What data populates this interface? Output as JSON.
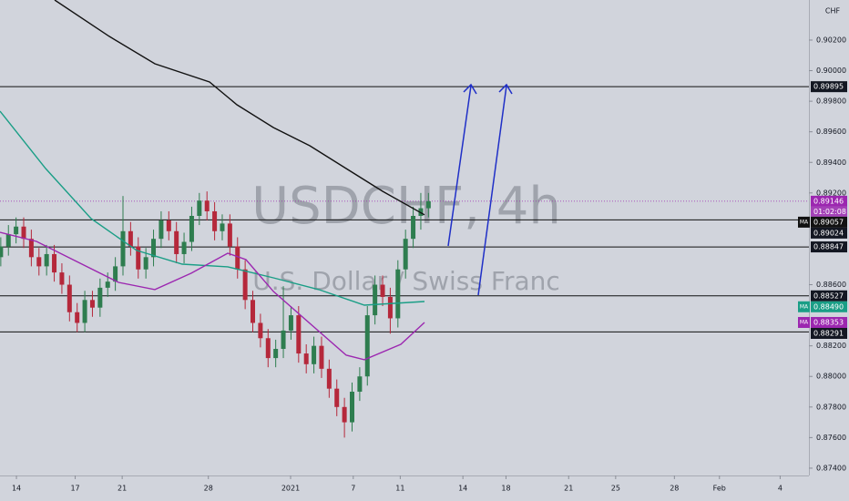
{
  "chart_data": {
    "type": "candlestick",
    "title": "USDCHF, 4h",
    "subtitle": "U.S. Dollar / Swiss Franc",
    "currency": "CHF",
    "up_color": "#2e7d4f",
    "down_color": "#b5283b",
    "xlim": [
      -0.84,
      40.47
    ],
    "xticks": [
      {
        "value": 0,
        "label": "14"
      },
      {
        "value": 3,
        "label": "17"
      },
      {
        "value": 5.4,
        "label": "21"
      },
      {
        "value": 9.8,
        "label": "28"
      },
      {
        "value": 14,
        "label": "2021"
      },
      {
        "value": 17.2,
        "label": "7"
      },
      {
        "value": 19.6,
        "label": "11"
      },
      {
        "value": 22.8,
        "label": "14"
      },
      {
        "value": 25,
        "label": "18"
      },
      {
        "value": 28.2,
        "label": "21"
      },
      {
        "value": 30.6,
        "label": "25"
      },
      {
        "value": 33.6,
        "label": "28"
      },
      {
        "value": 35.9,
        "label": "Feb"
      },
      {
        "value": 39,
        "label": "4"
      }
    ],
    "ylim": [
      0.87352,
      0.90462
    ],
    "yticks": [
      {
        "value": 0.902,
        "label": "0.90200"
      },
      {
        "value": 0.9,
        "label": "0.90000"
      },
      {
        "value": 0.898,
        "label": "0.89800"
      },
      {
        "value": 0.896,
        "label": "0.89600"
      },
      {
        "value": 0.894,
        "label": "0.89400"
      },
      {
        "value": 0.892,
        "label": "0.89200"
      },
      {
        "value": 0.886,
        "label": "0.88600"
      },
      {
        "value": 0.882,
        "label": "0.88200"
      },
      {
        "value": 0.88,
        "label": "0.88000"
      },
      {
        "value": 0.878,
        "label": "0.87800"
      },
      {
        "value": 0.876,
        "label": "0.87600"
      },
      {
        "value": 0.874,
        "label": "0.87400"
      }
    ],
    "x": [
      -0.8,
      -0.41,
      -0.02,
      0.37,
      0.76,
      1.15,
      1.54,
      1.93,
      2.32,
      2.71,
      3.1,
      3.49,
      3.88,
      4.27,
      4.66,
      5.05,
      5.44,
      5.83,
      6.22,
      6.61,
      7.0,
      7.39,
      7.78,
      8.17,
      8.56,
      8.95,
      9.34,
      9.73,
      10.12,
      10.51,
      10.9,
      11.29,
      11.68,
      12.07,
      12.46,
      12.85,
      13.24,
      13.63,
      14.02,
      14.41,
      14.8,
      15.19,
      15.58,
      15.97,
      16.36,
      16.75,
      17.14,
      17.53,
      17.92,
      18.31,
      18.7,
      19.09,
      19.48,
      19.87,
      20.26,
      20.65,
      21.04
    ],
    "open": [
      0.8878,
      0.8885,
      0.8893,
      0.8898,
      0.889,
      0.8878,
      0.8872,
      0.888,
      0.8868,
      0.886,
      0.8842,
      0.8835,
      0.885,
      0.8845,
      0.8858,
      0.8862,
      0.8872,
      0.8895,
      0.8885,
      0.887,
      0.8878,
      0.889,
      0.8902,
      0.8895,
      0.888,
      0.8888,
      0.8905,
      0.8915,
      0.8908,
      0.8895,
      0.89,
      0.8885,
      0.887,
      0.885,
      0.8835,
      0.8825,
      0.8812,
      0.8818,
      0.883,
      0.884,
      0.8815,
      0.8808,
      0.882,
      0.8805,
      0.8792,
      0.878,
      0.877,
      0.879,
      0.88,
      0.884,
      0.886,
      0.8852,
      0.8838,
      0.887,
      0.889,
      0.8905,
      0.891
    ],
    "high": [
      0.8891,
      0.8899,
      0.8904,
      0.8904,
      0.8896,
      0.8884,
      0.8886,
      0.8886,
      0.8874,
      0.8866,
      0.8848,
      0.8856,
      0.8856,
      0.8864,
      0.8868,
      0.8878,
      0.8918,
      0.8901,
      0.8891,
      0.8884,
      0.8896,
      0.8908,
      0.8908,
      0.8901,
      0.8894,
      0.8911,
      0.892,
      0.8921,
      0.8914,
      0.8906,
      0.8906,
      0.8891,
      0.8876,
      0.8856,
      0.8841,
      0.8831,
      0.8824,
      0.8859,
      0.8846,
      0.8846,
      0.8821,
      0.8826,
      0.8826,
      0.8811,
      0.8798,
      0.8786,
      0.8796,
      0.8806,
      0.8846,
      0.8866,
      0.8866,
      0.8858,
      0.8876,
      0.8896,
      0.8911,
      0.892,
      0.892
    ],
    "low": [
      0.8872,
      0.8879,
      0.8887,
      0.8884,
      0.8872,
      0.8866,
      0.8866,
      0.8862,
      0.8854,
      0.8836,
      0.8829,
      0.8829,
      0.8839,
      0.8839,
      0.8852,
      0.8856,
      0.8866,
      0.8879,
      0.8864,
      0.8864,
      0.8872,
      0.8884,
      0.8889,
      0.8874,
      0.8874,
      0.8882,
      0.8899,
      0.8902,
      0.8889,
      0.8889,
      0.8879,
      0.8864,
      0.8844,
      0.8829,
      0.8819,
      0.8806,
      0.8806,
      0.8812,
      0.8824,
      0.8809,
      0.8802,
      0.8802,
      0.8799,
      0.8786,
      0.8774,
      0.876,
      0.8764,
      0.8784,
      0.8794,
      0.8834,
      0.8846,
      0.8828,
      0.8832,
      0.8864,
      0.8884,
      0.8896,
      0.8904
    ],
    "close": [
      0.8885,
      0.8893,
      0.8898,
      0.889,
      0.8878,
      0.8872,
      0.888,
      0.8868,
      0.886,
      0.8842,
      0.8835,
      0.885,
      0.8845,
      0.8858,
      0.8862,
      0.8872,
      0.8895,
      0.8885,
      0.887,
      0.8878,
      0.889,
      0.8902,
      0.8895,
      0.888,
      0.8888,
      0.8905,
      0.8915,
      0.8908,
      0.8895,
      0.89,
      0.8885,
      0.887,
      0.885,
      0.8835,
      0.8825,
      0.8812,
      0.8818,
      0.883,
      0.884,
      0.8815,
      0.8808,
      0.882,
      0.8805,
      0.8792,
      0.878,
      0.877,
      0.879,
      0.88,
      0.884,
      0.886,
      0.8852,
      0.8838,
      0.887,
      0.889,
      0.8905,
      0.891,
      0.89146
    ],
    "moving_averages": [
      {
        "name": "MA",
        "color": "#111111",
        "x": [
          1.95,
          4.74,
          7.07,
          9.86,
          11.26,
          13.12,
          14.98,
          16.84,
          18.7,
          20.84
        ],
        "values": [
          0.90462,
          0.90224,
          0.90045,
          0.89926,
          0.89777,
          0.89628,
          0.89509,
          0.8936,
          0.89211,
          0.89057
        ],
        "value_label": "0.89057"
      },
      {
        "name": "MA",
        "color": "#1a9e86",
        "x": [
          -0.84,
          1.49,
          3.81,
          6.14,
          8.47,
          10.79,
          13.12,
          15.44,
          17.77,
          20.84
        ],
        "values": [
          0.89735,
          0.8936,
          0.89032,
          0.88824,
          0.88734,
          0.88717,
          0.88645,
          0.88568,
          0.88466,
          0.8849
        ],
        "value_label": "0.88490"
      },
      {
        "name": "MA",
        "color": "#9c27b0",
        "x": [
          -0.84,
          1.02,
          2.88,
          5.21,
          7.07,
          8.93,
          10.79,
          11.72,
          13.12,
          14.98,
          16.84,
          17.77,
          19.63,
          20.84
        ],
        "values": [
          0.88943,
          0.88883,
          0.88764,
          0.88615,
          0.88568,
          0.88675,
          0.88806,
          0.88764,
          0.88556,
          0.88347,
          0.88139,
          0.88109,
          0.8821,
          0.88353
        ],
        "value_label": "0.88353"
      }
    ],
    "levels": [
      0.89895,
      0.89024,
      0.88847,
      0.88527,
      0.88291
    ],
    "current_price": 0.89146,
    "current_color": "#9c27b0",
    "countdown": "01:02:08"
  }
}
